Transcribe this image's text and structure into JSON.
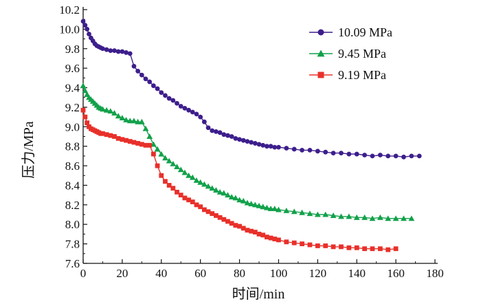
{
  "chart_data": {
    "type": "line",
    "xlabel": "时间/min",
    "ylabel": "压力/MPa",
    "xlim": [
      0,
      180
    ],
    "ylim": [
      7.6,
      10.2
    ],
    "xticks": [
      0,
      20,
      40,
      60,
      80,
      100,
      120,
      140,
      160,
      180
    ],
    "yticks": [
      7.6,
      7.8,
      8.0,
      8.2,
      8.4,
      8.6,
      8.8,
      9.0,
      9.2,
      9.4,
      9.6,
      9.8,
      10.0,
      10.2
    ],
    "xtick_labels": [
      "0",
      "20",
      "40",
      "60",
      "80",
      "100",
      "120",
      "140",
      "160",
      "180"
    ],
    "ytick_labels": [
      "7.6",
      "7.8",
      "8.0",
      "8.2",
      "8.4",
      "8.6",
      "8.8",
      "9.0",
      "9.2",
      "9.4",
      "9.6",
      "9.8",
      "10.0",
      "10.2"
    ],
    "grid": false,
    "legend_position": "top-right",
    "series": [
      {
        "name": "10.09 MPa",
        "color": "#3d1e8c",
        "marker": "circle",
        "x": [
          0,
          1,
          2,
          3,
          4,
          5,
          6,
          7,
          8,
          9,
          10,
          12,
          14,
          16,
          18,
          20,
          22,
          24,
          26,
          28,
          30,
          32,
          34,
          36,
          38,
          40,
          42,
          44,
          46,
          48,
          50,
          52,
          54,
          56,
          58,
          60,
          62,
          64,
          66,
          68,
          70,
          72,
          74,
          76,
          78,
          80,
          82,
          84,
          86,
          88,
          90,
          92,
          94,
          96,
          98,
          100,
          104,
          108,
          112,
          116,
          120,
          124,
          128,
          132,
          136,
          140,
          144,
          148,
          152,
          156,
          160,
          164,
          168,
          172
        ],
        "y": [
          10.08,
          10.04,
          10.0,
          9.95,
          9.91,
          9.88,
          9.85,
          9.83,
          9.82,
          9.81,
          9.8,
          9.79,
          9.78,
          9.78,
          9.77,
          9.77,
          9.76,
          9.75,
          9.62,
          9.57,
          9.53,
          9.49,
          9.46,
          9.42,
          9.39,
          9.35,
          9.32,
          9.29,
          9.27,
          9.24,
          9.21,
          9.19,
          9.17,
          9.15,
          9.13,
          9.1,
          9.05,
          8.99,
          8.96,
          8.95,
          8.94,
          8.92,
          8.91,
          8.9,
          8.88,
          8.87,
          8.86,
          8.85,
          8.84,
          8.83,
          8.82,
          8.81,
          8.8,
          8.8,
          8.79,
          8.79,
          8.78,
          8.77,
          8.76,
          8.76,
          8.75,
          8.74,
          8.73,
          8.73,
          8.72,
          8.72,
          8.71,
          8.7,
          8.71,
          8.7,
          8.7,
          8.69,
          8.7,
          8.7
        ]
      },
      {
        "name": "9.45 MPa",
        "color": "#12a14a",
        "marker": "triangle",
        "x": [
          0,
          1,
          2,
          3,
          4,
          5,
          6,
          7,
          8,
          9,
          10,
          12,
          14,
          16,
          18,
          20,
          22,
          24,
          26,
          28,
          30,
          32,
          34,
          36,
          38,
          40,
          42,
          44,
          46,
          48,
          50,
          52,
          54,
          56,
          58,
          60,
          62,
          64,
          66,
          68,
          70,
          72,
          74,
          76,
          78,
          80,
          82,
          84,
          86,
          88,
          90,
          92,
          94,
          96,
          98,
          100,
          104,
          108,
          112,
          116,
          120,
          124,
          128,
          132,
          136,
          140,
          144,
          148,
          152,
          156,
          160,
          164,
          168
        ],
        "y": [
          9.42,
          9.37,
          9.33,
          9.3,
          9.28,
          9.26,
          9.24,
          9.22,
          9.2,
          9.19,
          9.18,
          9.17,
          9.16,
          9.14,
          9.11,
          9.09,
          9.07,
          9.06,
          9.06,
          9.05,
          9.05,
          8.98,
          8.9,
          8.82,
          8.77,
          8.72,
          8.68,
          8.65,
          8.62,
          8.59,
          8.56,
          8.53,
          8.5,
          8.48,
          8.45,
          8.43,
          8.41,
          8.39,
          8.37,
          8.35,
          8.33,
          8.32,
          8.3,
          8.28,
          8.27,
          8.25,
          8.24,
          8.22,
          8.21,
          8.2,
          8.19,
          8.18,
          8.17,
          8.16,
          8.16,
          8.15,
          8.14,
          8.13,
          8.12,
          8.11,
          8.1,
          8.1,
          8.09,
          8.08,
          8.08,
          8.07,
          8.07,
          8.06,
          8.07,
          8.06,
          8.06,
          8.06,
          8.06
        ]
      },
      {
        "name": "9.19 MPa",
        "color": "#e8302a",
        "marker": "square",
        "x": [
          0,
          1,
          2,
          3,
          4,
          5,
          6,
          7,
          8,
          9,
          10,
          12,
          14,
          16,
          18,
          20,
          22,
          24,
          26,
          28,
          30,
          32,
          34,
          36,
          38,
          40,
          42,
          44,
          46,
          48,
          50,
          52,
          54,
          56,
          58,
          60,
          62,
          64,
          66,
          68,
          70,
          72,
          74,
          76,
          78,
          80,
          82,
          84,
          86,
          88,
          90,
          92,
          94,
          96,
          98,
          100,
          104,
          108,
          112,
          116,
          120,
          124,
          128,
          132,
          136,
          140,
          144,
          148,
          152,
          156,
          160
        ],
        "y": [
          9.17,
          9.1,
          9.04,
          9.0,
          8.98,
          8.97,
          8.96,
          8.95,
          8.94,
          8.93,
          8.93,
          8.92,
          8.91,
          8.9,
          8.88,
          8.87,
          8.86,
          8.85,
          8.84,
          8.83,
          8.82,
          8.81,
          8.81,
          8.72,
          8.6,
          8.5,
          8.44,
          8.4,
          8.37,
          8.33,
          8.3,
          8.27,
          8.25,
          8.23,
          8.2,
          8.18,
          8.15,
          8.13,
          8.11,
          8.09,
          8.07,
          8.05,
          8.03,
          8.01,
          7.99,
          7.98,
          7.96,
          7.94,
          7.93,
          7.92,
          7.9,
          7.89,
          7.87,
          7.86,
          7.85,
          7.84,
          7.82,
          7.81,
          7.8,
          7.79,
          7.78,
          7.78,
          7.77,
          7.77,
          7.76,
          7.76,
          7.75,
          7.75,
          7.75,
          7.74,
          7.75
        ]
      }
    ]
  }
}
